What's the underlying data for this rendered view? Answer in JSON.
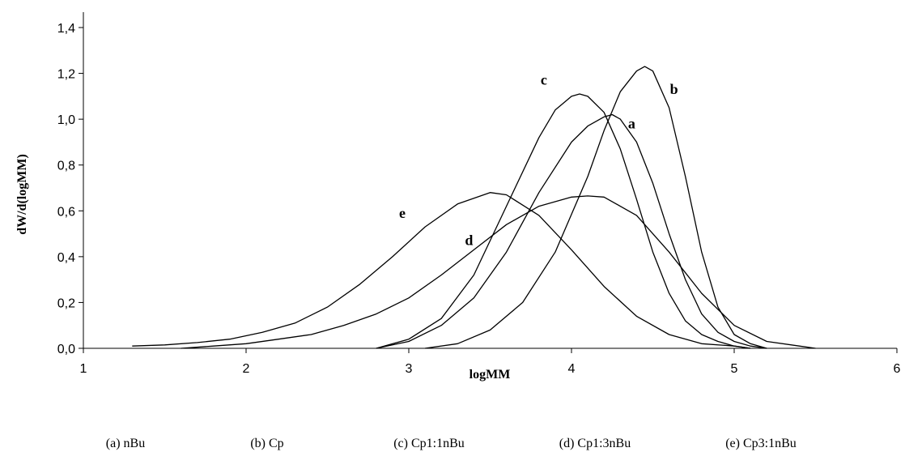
{
  "chart_data": {
    "type": "line",
    "title": "",
    "xlabel": "logMM",
    "ylabel": "dW/d(logMM)",
    "xlim": [
      1,
      6
    ],
    "ylim": [
      0,
      1.5
    ],
    "xticks": [
      "1",
      "2",
      "3",
      "4",
      "5",
      "6"
    ],
    "yticks": [
      "0,0",
      "0,2",
      "0,4",
      "0,6",
      "0,8",
      "1,0",
      "1,2",
      "1,4"
    ],
    "grid": false,
    "legend_position": "bottom",
    "series": [
      {
        "name": "a",
        "x": [
          2.8,
          3.0,
          3.2,
          3.4,
          3.6,
          3.8,
          4.0,
          4.1,
          4.2,
          4.25,
          4.3,
          4.4,
          4.5,
          4.6,
          4.7,
          4.8,
          4.9,
          5.0,
          5.1,
          5.2
        ],
        "y": [
          0.0,
          0.03,
          0.1,
          0.22,
          0.42,
          0.68,
          0.9,
          0.97,
          1.01,
          1.02,
          1.0,
          0.9,
          0.72,
          0.5,
          0.3,
          0.15,
          0.07,
          0.03,
          0.01,
          0.0
        ]
      },
      {
        "name": "b",
        "x": [
          3.1,
          3.3,
          3.5,
          3.7,
          3.9,
          4.1,
          4.2,
          4.3,
          4.4,
          4.45,
          4.5,
          4.6,
          4.7,
          4.8,
          4.9,
          5.0,
          5.1,
          5.2
        ],
        "y": [
          0.0,
          0.02,
          0.08,
          0.2,
          0.42,
          0.75,
          0.95,
          1.12,
          1.21,
          1.23,
          1.21,
          1.05,
          0.75,
          0.42,
          0.18,
          0.06,
          0.02,
          0.0
        ]
      },
      {
        "name": "c",
        "x": [
          2.8,
          3.0,
          3.2,
          3.4,
          3.6,
          3.8,
          3.9,
          4.0,
          4.05,
          4.1,
          4.2,
          4.3,
          4.4,
          4.5,
          4.6,
          4.7,
          4.8,
          4.9,
          5.0,
          5.1
        ],
        "y": [
          0.0,
          0.04,
          0.13,
          0.32,
          0.62,
          0.92,
          1.04,
          1.1,
          1.11,
          1.1,
          1.03,
          0.87,
          0.65,
          0.42,
          0.24,
          0.12,
          0.06,
          0.03,
          0.01,
          0.0
        ]
      },
      {
        "name": "d",
        "x": [
          1.6,
          1.8,
          2.0,
          2.2,
          2.4,
          2.6,
          2.8,
          3.0,
          3.2,
          3.4,
          3.6,
          3.8,
          4.0,
          4.1,
          4.2,
          4.4,
          4.6,
          4.8,
          5.0,
          5.2,
          5.4,
          5.5
        ],
        "y": [
          0.0,
          0.01,
          0.02,
          0.04,
          0.06,
          0.1,
          0.15,
          0.22,
          0.32,
          0.43,
          0.54,
          0.62,
          0.66,
          0.665,
          0.66,
          0.58,
          0.42,
          0.24,
          0.1,
          0.03,
          0.01,
          0.0
        ]
      },
      {
        "name": "e",
        "x": [
          1.3,
          1.5,
          1.7,
          1.9,
          2.1,
          2.3,
          2.5,
          2.7,
          2.9,
          3.1,
          3.3,
          3.5,
          3.6,
          3.8,
          4.0,
          4.2,
          4.4,
          4.6,
          4.8,
          5.0,
          5.1
        ],
        "y": [
          0.01,
          0.015,
          0.025,
          0.04,
          0.07,
          0.11,
          0.18,
          0.28,
          0.4,
          0.53,
          0.63,
          0.68,
          0.67,
          0.58,
          0.43,
          0.27,
          0.14,
          0.06,
          0.02,
          0.01,
          0.0
        ]
      }
    ],
    "curve_labels": [
      {
        "label": "a",
        "x": 4.37,
        "y": 0.96
      },
      {
        "label": "b",
        "x": 4.63,
        "y": 1.11
      },
      {
        "label": "c",
        "x": 3.83,
        "y": 1.15
      },
      {
        "label": "d",
        "x": 3.37,
        "y": 0.45
      },
      {
        "label": "e",
        "x": 2.96,
        "y": 0.57
      }
    ],
    "legend": [
      "(a) nBu",
      "(b) Cp",
      "(c) Cp1:1nBu",
      "(d) Cp1:3nBu",
      "(e) Cp3:1nBu"
    ]
  }
}
